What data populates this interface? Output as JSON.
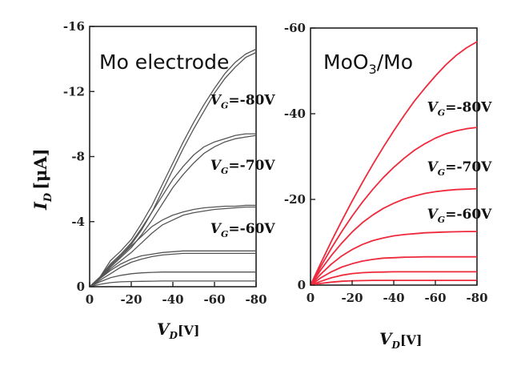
{
  "chart_data": [
    {
      "type": "line",
      "title": "Mo electrode",
      "xlabel": "V",
      "xlabel_sub": "D",
      "xlabel_unit": "[V]",
      "ylabel": "I",
      "ylabel_sub": "D",
      "ylabel_unit": "[μA]",
      "xlim": [
        0,
        -80
      ],
      "ylim": [
        0,
        -16
      ],
      "x_ticks": [
        "0",
        "-20",
        "-40",
        "-60",
        "-80"
      ],
      "y_ticks": [
        "0",
        "-4",
        "-8",
        "-12",
        "-16"
      ],
      "color": "#555555",
      "annotations": [
        {
          "prefix": "V",
          "sub": "G",
          "value": "=-80V",
          "x": -58,
          "y": -11.2
        },
        {
          "prefix": "V",
          "sub": "G",
          "value": "=-70V",
          "x": -58,
          "y": -7.2
        },
        {
          "prefix": "V",
          "sub": "G",
          "value": "=-60V",
          "x": -58,
          "y": -3.3
        }
      ],
      "x": [
        0,
        -5,
        -10,
        -15,
        -20,
        -25,
        -30,
        -35,
        -40,
        -45,
        -50,
        -55,
        -60,
        -65,
        -70,
        -75,
        -80
      ],
      "series": [
        {
          "values": [
            0,
            -0.6,
            -1.6,
            -2.2,
            -2.9,
            -3.9,
            -5.0,
            -6.3,
            -7.6,
            -8.9,
            -10.1,
            -11.2,
            -12.2,
            -13.1,
            -13.8,
            -14.3,
            -14.6
          ]
        },
        {
          "values": [
            0,
            -0.5,
            -1.3,
            -1.9,
            -2.6,
            -3.5,
            -4.6,
            -5.9,
            -7.2,
            -8.5,
            -9.7,
            -10.8,
            -11.9,
            -12.8,
            -13.5,
            -14.1,
            -14.4
          ]
        },
        {
          "values": [
            0,
            -0.6,
            -1.4,
            -2.0,
            -2.7,
            -3.6,
            -4.6,
            -5.6,
            -6.6,
            -7.4,
            -8.1,
            -8.6,
            -8.9,
            -9.1,
            -9.3,
            -9.4,
            -9.4
          ]
        },
        {
          "values": [
            0,
            -0.5,
            -1.2,
            -1.8,
            -2.4,
            -3.2,
            -4.1,
            -5.1,
            -6.1,
            -6.9,
            -7.6,
            -8.2,
            -8.6,
            -8.9,
            -9.1,
            -9.2,
            -9.3
          ]
        },
        {
          "values": [
            0,
            -0.6,
            -1.3,
            -1.9,
            -2.5,
            -3.1,
            -3.7,
            -4.1,
            -4.4,
            -4.6,
            -4.75,
            -4.85,
            -4.9,
            -4.95,
            -4.95,
            -5.0,
            -5.0
          ]
        },
        {
          "values": [
            0,
            -0.5,
            -1.1,
            -1.6,
            -2.1,
            -2.7,
            -3.3,
            -3.8,
            -4.1,
            -4.4,
            -4.55,
            -4.65,
            -4.75,
            -4.8,
            -4.85,
            -4.9,
            -4.9
          ]
        },
        {
          "values": [
            0,
            -0.5,
            -1.0,
            -1.4,
            -1.7,
            -1.9,
            -2.0,
            -2.1,
            -2.15,
            -2.2,
            -2.2,
            -2.2,
            -2.2,
            -2.2,
            -2.2,
            -2.2,
            -2.2
          ]
        },
        {
          "values": [
            0,
            -0.4,
            -0.8,
            -1.2,
            -1.5,
            -1.7,
            -1.85,
            -1.95,
            -2.0,
            -2.05,
            -2.05,
            -2.05,
            -2.05,
            -2.05,
            -2.05,
            -2.05,
            -2.05
          ]
        },
        {
          "values": [
            0,
            -0.3,
            -0.55,
            -0.7,
            -0.8,
            -0.85,
            -0.88,
            -0.9,
            -0.9,
            -0.9,
            -0.9,
            -0.9,
            -0.9,
            -0.9,
            -0.9,
            -0.9,
            -0.9
          ]
        },
        {
          "values": [
            0,
            -0.15,
            -0.25,
            -0.3,
            -0.32,
            -0.33,
            -0.34,
            -0.35,
            -0.35,
            -0.35,
            -0.35,
            -0.35,
            -0.35,
            -0.35,
            -0.35,
            -0.35,
            -0.35
          ]
        }
      ]
    },
    {
      "type": "line",
      "title": "MoO",
      "title_sub": "3",
      "title_suffix": "/Mo",
      "xlabel": "V",
      "xlabel_sub": "D",
      "xlabel_unit": "[V]",
      "ylabel": "",
      "xlim": [
        0,
        -80
      ],
      "ylim": [
        0,
        -60
      ],
      "x_ticks": [
        "0",
        "-20",
        "-40",
        "-60",
        "-80"
      ],
      "y_ticks": [
        "0",
        "-20",
        "-40",
        "-60"
      ],
      "color": "#ee2a3c",
      "annotations": [
        {
          "prefix": "V",
          "sub": "G",
          "value": "=-80V",
          "x": -56,
          "y": -40.5
        },
        {
          "prefix": "V",
          "sub": "G",
          "value": "=-70V",
          "x": -56,
          "y": -26.5
        },
        {
          "prefix": "V",
          "sub": "G",
          "value": "=-60V",
          "x": -56,
          "y": -15.5
        }
      ],
      "x": [
        0,
        -5,
        -10,
        -15,
        -20,
        -25,
        -30,
        -35,
        -40,
        -45,
        -50,
        -55,
        -60,
        -65,
        -70,
        -75,
        -80
      ],
      "series": [
        {
          "values": [
            0,
            -5.2,
            -10.2,
            -15.0,
            -19.6,
            -24.0,
            -28.2,
            -32.2,
            -36.0,
            -39.6,
            -43.0,
            -46.0,
            -48.8,
            -51.4,
            -53.6,
            -55.4,
            -56.8
          ]
        },
        {
          "values": [
            0,
            -4.4,
            -8.6,
            -12.5,
            -16.1,
            -19.4,
            -22.4,
            -25.1,
            -27.5,
            -29.6,
            -31.5,
            -33.0,
            -34.3,
            -35.3,
            -36.0,
            -36.5,
            -36.8
          ]
        },
        {
          "values": [
            0,
            -3.6,
            -6.9,
            -9.8,
            -12.4,
            -14.6,
            -16.4,
            -17.9,
            -19.1,
            -20.1,
            -20.8,
            -21.4,
            -21.8,
            -22.1,
            -22.3,
            -22.4,
            -22.5
          ]
        },
        {
          "values": [
            0,
            -2.6,
            -4.9,
            -6.8,
            -8.3,
            -9.5,
            -10.4,
            -11.0,
            -11.5,
            -11.8,
            -12.0,
            -12.2,
            -12.3,
            -12.4,
            -12.45,
            -12.5,
            -12.5
          ]
        },
        {
          "values": [
            0,
            -1.7,
            -3.1,
            -4.2,
            -5.0,
            -5.6,
            -6.0,
            -6.3,
            -6.4,
            -6.5,
            -6.55,
            -6.6,
            -6.6,
            -6.6,
            -6.6,
            -6.6,
            -6.6
          ]
        },
        {
          "values": [
            0,
            -0.9,
            -1.7,
            -2.3,
            -2.7,
            -2.9,
            -3.0,
            -3.05,
            -3.1,
            -3.1,
            -3.1,
            -3.1,
            -3.1,
            -3.1,
            -3.1,
            -3.1,
            -3.1
          ]
        },
        {
          "values": [
            0,
            -0.4,
            -0.7,
            -0.9,
            -1.0,
            -1.05,
            -1.1,
            -1.1,
            -1.1,
            -1.1,
            -1.1,
            -1.1,
            -1.1,
            -1.1,
            -1.1,
            -1.1,
            -1.1
          ]
        }
      ]
    }
  ]
}
